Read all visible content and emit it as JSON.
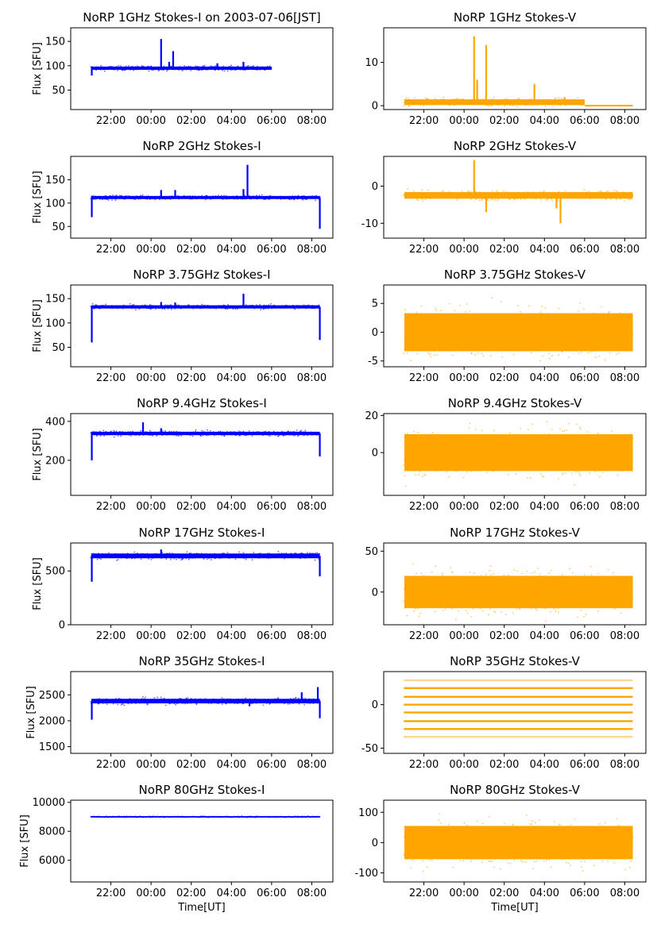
{
  "figure": {
    "xlabel": "Time[UT]",
    "colors": {
      "stokes_i": "#0000ff",
      "stokes_v": "#ffa500",
      "axes": "#000000"
    }
  },
  "chart_data": [
    {
      "type": "scatter",
      "title": "NoRP 1GHz Stokes-I on 2003-07-06[JST]",
      "ylabel": "Flux [SFU]",
      "color": "#0000ff",
      "x_ticks": [
        "22:00",
        "00:00",
        "02:00",
        "04:00",
        "06:00",
        "08:00"
      ],
      "x_tick_hours": [
        22,
        24,
        26,
        28,
        30,
        32
      ],
      "xlim": [
        20.0,
        33.05
      ],
      "ylim": [
        10,
        178
      ],
      "y_ticks": [
        50,
        100,
        150
      ],
      "x_start": 21.0,
      "x_end": 30.0,
      "base": 95,
      "noise": 3,
      "peaks": [
        [
          21.05,
          80
        ],
        [
          24.5,
          155
        ],
        [
          25.1,
          130
        ],
        [
          24.9,
          108
        ],
        [
          27.3,
          105
        ],
        [
          28.6,
          108
        ]
      ]
    },
    {
      "type": "scatter",
      "title": "NoRP 1GHz Stokes-V",
      "ylabel": "",
      "color": "#ffa500",
      "x_ticks": [
        "22:00",
        "00:00",
        "02:00",
        "04:00",
        "06:00",
        "08:00"
      ],
      "x_tick_hours": [
        22,
        24,
        26,
        28,
        30,
        32
      ],
      "xlim": [
        20.0,
        33.05
      ],
      "ylim": [
        -0.9,
        18
      ],
      "y_ticks": [
        0,
        10
      ],
      "x_start": 21.0,
      "x_end": 32.4,
      "base": 0.8,
      "noise": 0.6,
      "tail_after": 30.0,
      "tail_value": 0,
      "peaks": [
        [
          24.5,
          16
        ],
        [
          24.65,
          6
        ],
        [
          25.1,
          14
        ],
        [
          27.5,
          5
        ],
        [
          29.0,
          2
        ]
      ]
    },
    {
      "type": "scatter",
      "title": "NoRP 2GHz Stokes-I",
      "ylabel": "Flux [SFU]",
      "color": "#0000ff",
      "x_ticks": [
        "22:00",
        "00:00",
        "02:00",
        "04:00",
        "06:00",
        "08:00"
      ],
      "x_tick_hours": [
        22,
        24,
        26,
        28,
        30,
        32
      ],
      "xlim": [
        20.0,
        33.05
      ],
      "ylim": [
        25,
        200
      ],
      "y_ticks": [
        50,
        100,
        150
      ],
      "x_start": 21.0,
      "x_end": 32.4,
      "base": 112,
      "noise": 3,
      "peaks": [
        [
          21.05,
          70
        ],
        [
          24.5,
          128
        ],
        [
          25.2,
          128
        ],
        [
          28.6,
          130
        ],
        [
          28.8,
          182
        ],
        [
          32.4,
          45
        ]
      ]
    },
    {
      "type": "scatter",
      "title": "NoRP 2GHz Stokes-V",
      "ylabel": "",
      "color": "#ffa500",
      "x_ticks": [
        "22:00",
        "00:00",
        "02:00",
        "04:00",
        "06:00",
        "08:00"
      ],
      "x_tick_hours": [
        22,
        24,
        26,
        28,
        30,
        32
      ],
      "xlim": [
        20.0,
        33.05
      ],
      "ylim": [
        -14,
        8
      ],
      "y_ticks": [
        -10,
        0
      ],
      "x_start": 21.0,
      "x_end": 32.4,
      "base": -2.5,
      "noise": 0.8,
      "peaks": [
        [
          24.5,
          7
        ],
        [
          25.1,
          -7
        ],
        [
          28.6,
          -6
        ],
        [
          28.8,
          -10
        ]
      ]
    },
    {
      "type": "scatter",
      "title": "NoRP 3.75GHz Stokes-I",
      "ylabel": "Flux [SFU]",
      "color": "#0000ff",
      "x_ticks": [
        "22:00",
        "00:00",
        "02:00",
        "04:00",
        "06:00",
        "08:00"
      ],
      "x_tick_hours": [
        22,
        24,
        26,
        28,
        30,
        32
      ],
      "xlim": [
        20.0,
        33.05
      ],
      "ylim": [
        10,
        178
      ],
      "y_ticks": [
        50,
        100,
        150
      ],
      "x_start": 21.0,
      "x_end": 32.4,
      "base": 133,
      "noise": 3,
      "peaks": [
        [
          21.05,
          60
        ],
        [
          24.5,
          143
        ],
        [
          25.2,
          142
        ],
        [
          28.6,
          160
        ],
        [
          32.4,
          65
        ]
      ]
    },
    {
      "type": "scatter",
      "title": "NoRP 3.75GHz Stokes-V",
      "ylabel": "",
      "color": "#ffa500",
      "x_ticks": [
        "22:00",
        "00:00",
        "02:00",
        "04:00",
        "06:00",
        "08:00"
      ],
      "x_tick_hours": [
        22,
        24,
        26,
        28,
        30,
        32
      ],
      "xlim": [
        20.0,
        33.05
      ],
      "ylim": [
        -6,
        8.2
      ],
      "y_ticks": [
        -5,
        0,
        5
      ],
      "x_start": 21.0,
      "x_end": 32.4,
      "base": 0,
      "noise": 3,
      "peaks": []
    },
    {
      "type": "scatter",
      "title": "NoRP 9.4GHz Stokes-I",
      "ylabel": "Flux [SFU]",
      "color": "#0000ff",
      "x_ticks": [
        "22:00",
        "00:00",
        "02:00",
        "04:00",
        "06:00",
        "08:00"
      ],
      "x_tick_hours": [
        22,
        24,
        26,
        28,
        30,
        32
      ],
      "xlim": [
        20.0,
        33.05
      ],
      "ylim": [
        20,
        440
      ],
      "y_ticks": [
        200,
        400
      ],
      "x_start": 21.0,
      "x_end": 32.4,
      "base": 338,
      "noise": 8,
      "peaks": [
        [
          21.05,
          200
        ],
        [
          23.6,
          395
        ],
        [
          24.5,
          365
        ],
        [
          32.4,
          220
        ]
      ]
    },
    {
      "type": "scatter",
      "title": "NoRP 9.4GHz Stokes-V",
      "ylabel": "",
      "color": "#ffa500",
      "x_ticks": [
        "22:00",
        "00:00",
        "02:00",
        "04:00",
        "06:00",
        "08:00"
      ],
      "x_tick_hours": [
        22,
        24,
        26,
        28,
        30,
        32
      ],
      "xlim": [
        20.0,
        33.05
      ],
      "ylim": [
        -23,
        21
      ],
      "y_ticks": [
        0,
        20
      ],
      "x_start": 21.0,
      "x_end": 32.4,
      "base": 0,
      "noise": 9,
      "peaks": []
    },
    {
      "type": "scatter",
      "title": "NoRP 17GHz Stokes-I",
      "ylabel": "Flux [SFU]",
      "color": "#0000ff",
      "x_ticks": [
        "22:00",
        "00:00",
        "02:00",
        "04:00",
        "06:00",
        "08:00"
      ],
      "x_tick_hours": [
        22,
        24,
        26,
        28,
        30,
        32
      ],
      "xlim": [
        20.0,
        33.05
      ],
      "ylim": [
        0,
        760
      ],
      "y_ticks": [
        0,
        500
      ],
      "x_start": 21.0,
      "x_end": 32.4,
      "base": 640,
      "noise": 20,
      "peaks": [
        [
          21.05,
          400
        ],
        [
          24.5,
          700
        ],
        [
          32.4,
          450
        ]
      ]
    },
    {
      "type": "scatter",
      "title": "NoRP 17GHz Stokes-V",
      "ylabel": "",
      "color": "#ffa500",
      "x_ticks": [
        "22:00",
        "00:00",
        "02:00",
        "04:00",
        "06:00",
        "08:00"
      ],
      "x_tick_hours": [
        22,
        24,
        26,
        28,
        30,
        32
      ],
      "xlim": [
        20.0,
        33.05
      ],
      "ylim": [
        -40,
        60
      ],
      "y_ticks": [
        0,
        50
      ],
      "x_start": 21.0,
      "x_end": 32.4,
      "base": 0,
      "noise": 18,
      "peaks": []
    },
    {
      "type": "scatter",
      "title": "NoRP 35GHz Stokes-I",
      "ylabel": "Flux [SFU]",
      "color": "#0000ff",
      "x_ticks": [
        "22:00",
        "00:00",
        "02:00",
        "04:00",
        "06:00",
        "08:00"
      ],
      "x_tick_hours": [
        22,
        24,
        26,
        28,
        30,
        32
      ],
      "xlim": [
        20.0,
        33.05
      ],
      "ylim": [
        1370,
        2950
      ],
      "y_ticks": [
        1500,
        2000,
        2500
      ],
      "x_start": 21.0,
      "x_end": 32.4,
      "base": 2380,
      "noise": 40,
      "peaks": [
        [
          21.05,
          2020
        ],
        [
          28.9,
          2280
        ],
        [
          31.5,
          2550
        ],
        [
          32.3,
          2650
        ],
        [
          32.4,
          2050
        ]
      ]
    },
    {
      "type": "scatter",
      "title": "NoRP 35GHz Stokes-V",
      "ylabel": "",
      "color": "#ffa500",
      "x_ticks": [
        "22:00",
        "00:00",
        "02:00",
        "04:00",
        "06:00",
        "08:00"
      ],
      "x_tick_hours": [
        22,
        24,
        26,
        28,
        30,
        32
      ],
      "xlim": [
        20.0,
        33.05
      ],
      "ylim": [
        -56,
        38
      ],
      "y_ticks": [
        -50,
        0
      ],
      "x_start": 21.0,
      "x_end": 32.4,
      "base": 0,
      "noise": 0,
      "levels": [
        28,
        19,
        9,
        0,
        -9,
        -19,
        -28,
        -37
      ],
      "peaks": []
    },
    {
      "type": "scatter",
      "title": "NoRP 80GHz Stokes-I",
      "ylabel": "Flux [SFU]",
      "color": "#0000ff",
      "x_ticks": [
        "22:00",
        "00:00",
        "02:00",
        "04:00",
        "06:00",
        "08:00"
      ],
      "x_tick_hours": [
        22,
        24,
        26,
        28,
        30,
        32
      ],
      "xlim": [
        20.0,
        33.05
      ],
      "ylim": [
        4500,
        10150
      ],
      "y_ticks": [
        6000,
        8000,
        10000
      ],
      "x_start": 21.0,
      "x_end": 32.4,
      "base": 9000,
      "noise": 25,
      "peaks": []
    },
    {
      "type": "scatter",
      "title": "NoRP 80GHz Stokes-V",
      "ylabel": "",
      "color": "#ffa500",
      "x_ticks": [
        "22:00",
        "00:00",
        "02:00",
        "04:00",
        "06:00",
        "08:00"
      ],
      "x_tick_hours": [
        22,
        24,
        26,
        28,
        30,
        32
      ],
      "xlim": [
        20.0,
        33.05
      ],
      "ylim": [
        -130,
        140
      ],
      "y_ticks": [
        -100,
        0,
        100
      ],
      "x_start": 21.0,
      "x_end": 32.4,
      "base": 0,
      "noise": 50,
      "peaks": []
    }
  ]
}
